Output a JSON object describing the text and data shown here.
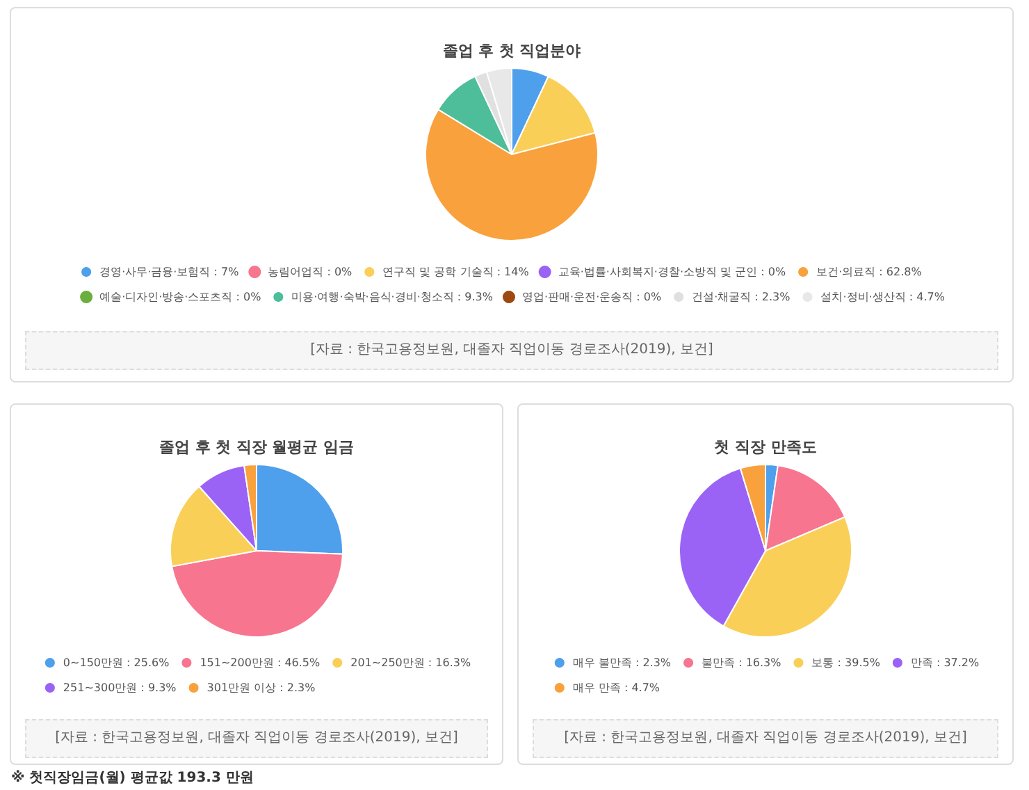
{
  "chart_data": [
    {
      "type": "pie",
      "title": "졸업 후 첫 직업분야",
      "legend": "bottom",
      "categories": [
        "경영·사무·금융·보험직",
        "농림어업직",
        "연구직 및 공학 기술직",
        "교육·법률·사회복지·경찰·소방직 및 군인",
        "보건·의료직",
        "예술·디자인·방송·스포츠직",
        "미용·여행·숙박·음식·경비·청소직",
        "영업·판매·운전·운송직",
        "건설·채굴직",
        "설치·정비·생산직"
      ],
      "values": [
        7,
        0,
        14,
        0,
        62.8,
        0,
        9.3,
        0,
        2.3,
        4.7
      ],
      "value_labels": [
        "7%",
        "0%",
        "14%",
        "0%",
        "62.8%",
        "0%",
        "9.3%",
        "0%",
        "2.3%",
        "4.7%"
      ],
      "colors": [
        "#4e9fec",
        "#f7758f",
        "#f9cf57",
        "#9a63f6",
        "#f9a13c",
        "#6aaf3d",
        "#4dbd9a",
        "#9c4a10",
        "#e0e0e0",
        "#e8e8e8"
      ],
      "annotations": [
        "[자료 : 한국고용정보원, 대졸자 직업이동 경로조사(2019), 보건]"
      ]
    },
    {
      "type": "pie",
      "title": "졸업 후 첫 직장 월평균 임금",
      "legend": "bottom",
      "categories": [
        "0~150만원",
        "151~200만원",
        "201~250만원",
        "251~300만원",
        "301만원 이상"
      ],
      "values": [
        25.6,
        46.5,
        16.3,
        9.3,
        2.3
      ],
      "value_labels": [
        "25.6%",
        "46.5%",
        "16.3%",
        "9.3%",
        "2.3%"
      ],
      "colors": [
        "#4e9fec",
        "#f7758f",
        "#f9cf57",
        "#9a63f6",
        "#f9a13c"
      ],
      "annotations": [
        "[자료 : 한국고용정보원, 대졸자 직업이동 경로조사(2019), 보건]",
        "※ 첫직장임금(월) 평균값 193.3 만원"
      ]
    },
    {
      "type": "pie",
      "title": "첫 직장 만족도",
      "legend": "bottom",
      "categories": [
        "매우 불만족",
        "불만족",
        "보통",
        "만족",
        "매우 만족"
      ],
      "values": [
        2.3,
        16.3,
        39.5,
        37.2,
        4.7
      ],
      "value_labels": [
        "2.3%",
        "16.3%",
        "39.5%",
        "37.2%",
        "4.7%"
      ],
      "colors": [
        "#4e9fec",
        "#f7758f",
        "#f9cf57",
        "#9a63f6",
        "#f9a13c"
      ],
      "annotations": [
        "[자료 : 한국고용정보원, 대졸자 직업이동 경로조사(2019), 보건]"
      ]
    }
  ]
}
